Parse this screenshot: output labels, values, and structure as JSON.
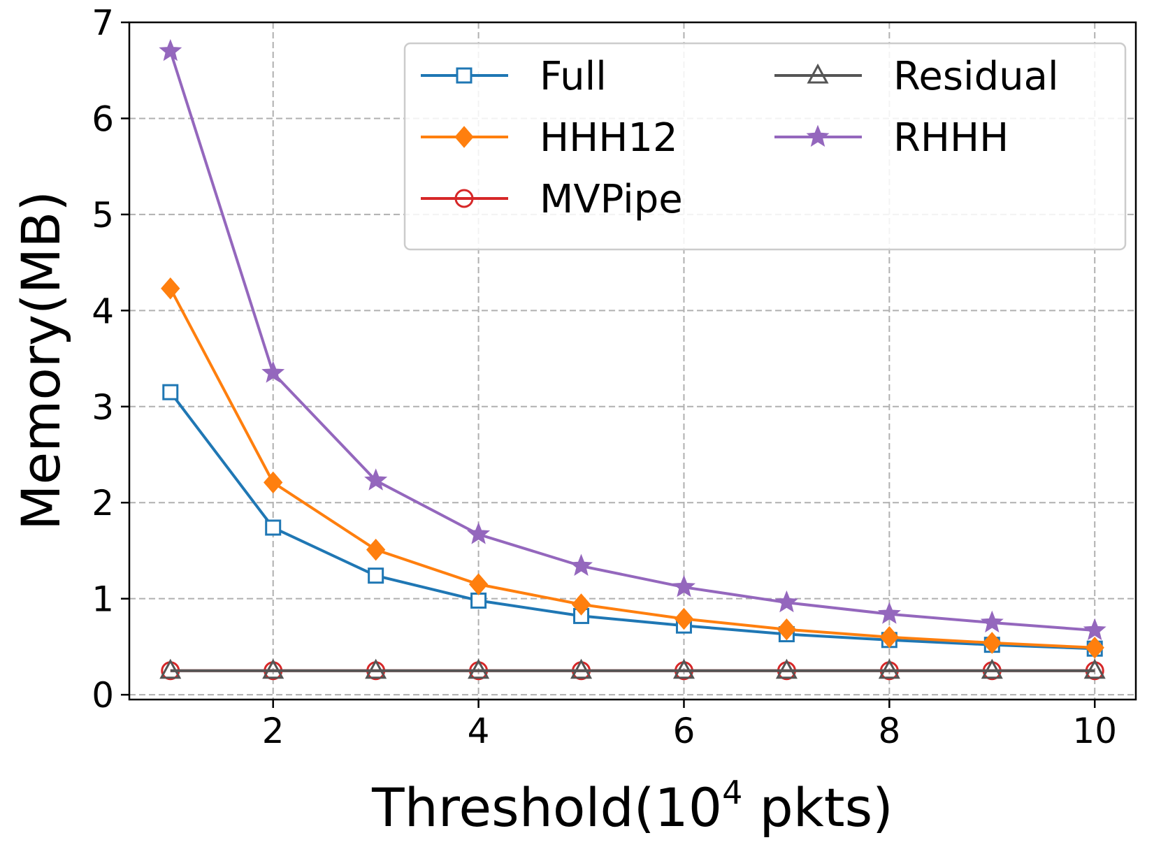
{
  "chart_data": {
    "type": "line",
    "title": "",
    "xlabel": "Threshold(10",
    "xlabel_sup": "4",
    "xlabel_suffix": " pkts)",
    "ylabel": "Memory(MB)",
    "xlim": [
      0.6,
      10.4
    ],
    "ylim": [
      -0.05,
      7.0
    ],
    "xticks": [
      2,
      4,
      6,
      8,
      10
    ],
    "yticks": [
      0,
      1,
      2,
      3,
      4,
      5,
      6,
      7
    ],
    "grid": true,
    "legend_position": "top-right",
    "x": [
      1,
      2,
      3,
      4,
      5,
      6,
      7,
      8,
      9,
      10
    ],
    "series": [
      {
        "name": "Full",
        "color": "#1f77b4",
        "marker": "square-open",
        "values": [
          3.15,
          1.74,
          1.24,
          0.98,
          0.82,
          0.72,
          0.63,
          0.57,
          0.52,
          0.48
        ]
      },
      {
        "name": "HHH12",
        "color": "#ff7f0e",
        "marker": "diamond-filled",
        "values": [
          4.23,
          2.21,
          1.51,
          1.15,
          0.94,
          0.79,
          0.68,
          0.6,
          0.54,
          0.49
        ]
      },
      {
        "name": "MVPipe",
        "color": "#d62728",
        "marker": "circle-open",
        "values": [
          0.25,
          0.25,
          0.25,
          0.25,
          0.25,
          0.25,
          0.25,
          0.25,
          0.25,
          0.25
        ]
      },
      {
        "name": "Residual",
        "color": "#555555",
        "marker": "triangle-open",
        "values": [
          0.25,
          0.25,
          0.25,
          0.25,
          0.25,
          0.25,
          0.25,
          0.25,
          0.25,
          0.25
        ]
      },
      {
        "name": "RHHH",
        "color": "#9467bd",
        "marker": "star-filled",
        "values": [
          6.7,
          3.35,
          2.23,
          1.67,
          1.34,
          1.12,
          0.96,
          0.84,
          0.75,
          0.67
        ]
      }
    ]
  }
}
